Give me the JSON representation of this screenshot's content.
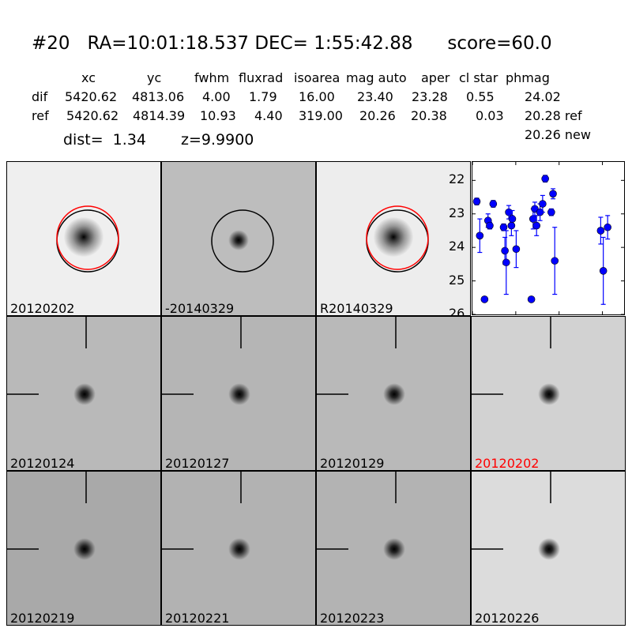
{
  "header": {
    "title": "#20   RA=10:01:18.537 DEC= 1:55:42.88      score=60.0",
    "columns": [
      "xc",
      "yc",
      "fwhm",
      "fluxrad",
      "isoarea",
      "mag auto",
      "aper",
      "cl star",
      "phmag"
    ],
    "dif": {
      "label": "dif",
      "values": [
        "5420.62",
        "4813.06",
        "4.00",
        "1.79",
        "16.00",
        "23.40",
        "23.28",
        "0.55",
        "24.02"
      ]
    },
    "ref": {
      "label": "ref",
      "values": [
        "5420.62",
        "4814.39",
        "10.93",
        "4.40",
        "319.00",
        "20.26",
        "20.38",
        "0.03",
        "20.28 ref"
      ]
    },
    "new_mag": "20.26 new",
    "dist": "dist=  1.34",
    "z": "z=9.9900"
  },
  "top_panels": [
    {
      "label": "20120202"
    },
    {
      "label": "-20140329"
    },
    {
      "label": "R20140329"
    }
  ],
  "stamps": [
    {
      "label": "20120124",
      "color": "#000000"
    },
    {
      "label": "20120127",
      "color": "#000000"
    },
    {
      "label": "20120129",
      "color": "#000000"
    },
    {
      "label": "20120202",
      "color": "#ff0000"
    },
    {
      "label": "20120219",
      "color": "#000000"
    },
    {
      "label": "20120221",
      "color": "#000000"
    },
    {
      "label": "20120223",
      "color": "#000000"
    },
    {
      "label": "20120226",
      "color": "#000000"
    }
  ],
  "chart_data": {
    "type": "scatter",
    "xlim": [
      -50,
      125
    ],
    "ylim": [
      26,
      21.45
    ],
    "y_inverted": true,
    "xticks": [
      "-50",
      "0",
      "50",
      "100"
    ],
    "yticks": [
      "22",
      "23",
      "24",
      "25",
      "26"
    ],
    "color": "#0000ff",
    "points": [
      {
        "x": -45,
        "y": 22.63,
        "err": 0.1
      },
      {
        "x": -41.5,
        "y": 23.65,
        "err": 0.5
      },
      {
        "x": -36,
        "y": 25.55,
        "err": 0.05
      },
      {
        "x": -32,
        "y": 23.2,
        "err": 0.2
      },
      {
        "x": -30,
        "y": 23.35,
        "err": 0.1
      },
      {
        "x": -26,
        "y": 22.7,
        "err": 0.1
      },
      {
        "x": -14,
        "y": 23.4,
        "err": 0.1
      },
      {
        "x": -12.5,
        "y": 24.1,
        "err": 0.4
      },
      {
        "x": -11,
        "y": 24.45,
        "err": 0.95
      },
      {
        "x": -8,
        "y": 22.95,
        "err": 0.2
      },
      {
        "x": -5,
        "y": 23.35,
        "err": 0.3
      },
      {
        "x": -4,
        "y": 23.15,
        "err": 0.25
      },
      {
        "x": 0.5,
        "y": 24.05,
        "err": 0.55
      },
      {
        "x": 18,
        "y": 25.55,
        "err": 0.05
      },
      {
        "x": 20,
        "y": 23.15,
        "err": 0.3
      },
      {
        "x": 22,
        "y": 22.85,
        "err": 0.2
      },
      {
        "x": 24,
        "y": 23.35,
        "err": 0.3
      },
      {
        "x": 28,
        "y": 22.95,
        "err": 0.25
      },
      {
        "x": 31,
        "y": 22.7,
        "err": 0.25
      },
      {
        "x": 34,
        "y": 21.95,
        "err": 0.1
      },
      {
        "x": 41,
        "y": 22.95,
        "err": 0.1
      },
      {
        "x": 43,
        "y": 22.4,
        "err": 0.15
      },
      {
        "x": 45,
        "y": 24.4,
        "err": 1.0
      },
      {
        "x": 98,
        "y": 23.5,
        "err": 0.4
      },
      {
        "x": 101,
        "y": 24.7,
        "err": 1.0
      },
      {
        "x": 106,
        "y": 23.4,
        "err": 0.35
      }
    ]
  }
}
